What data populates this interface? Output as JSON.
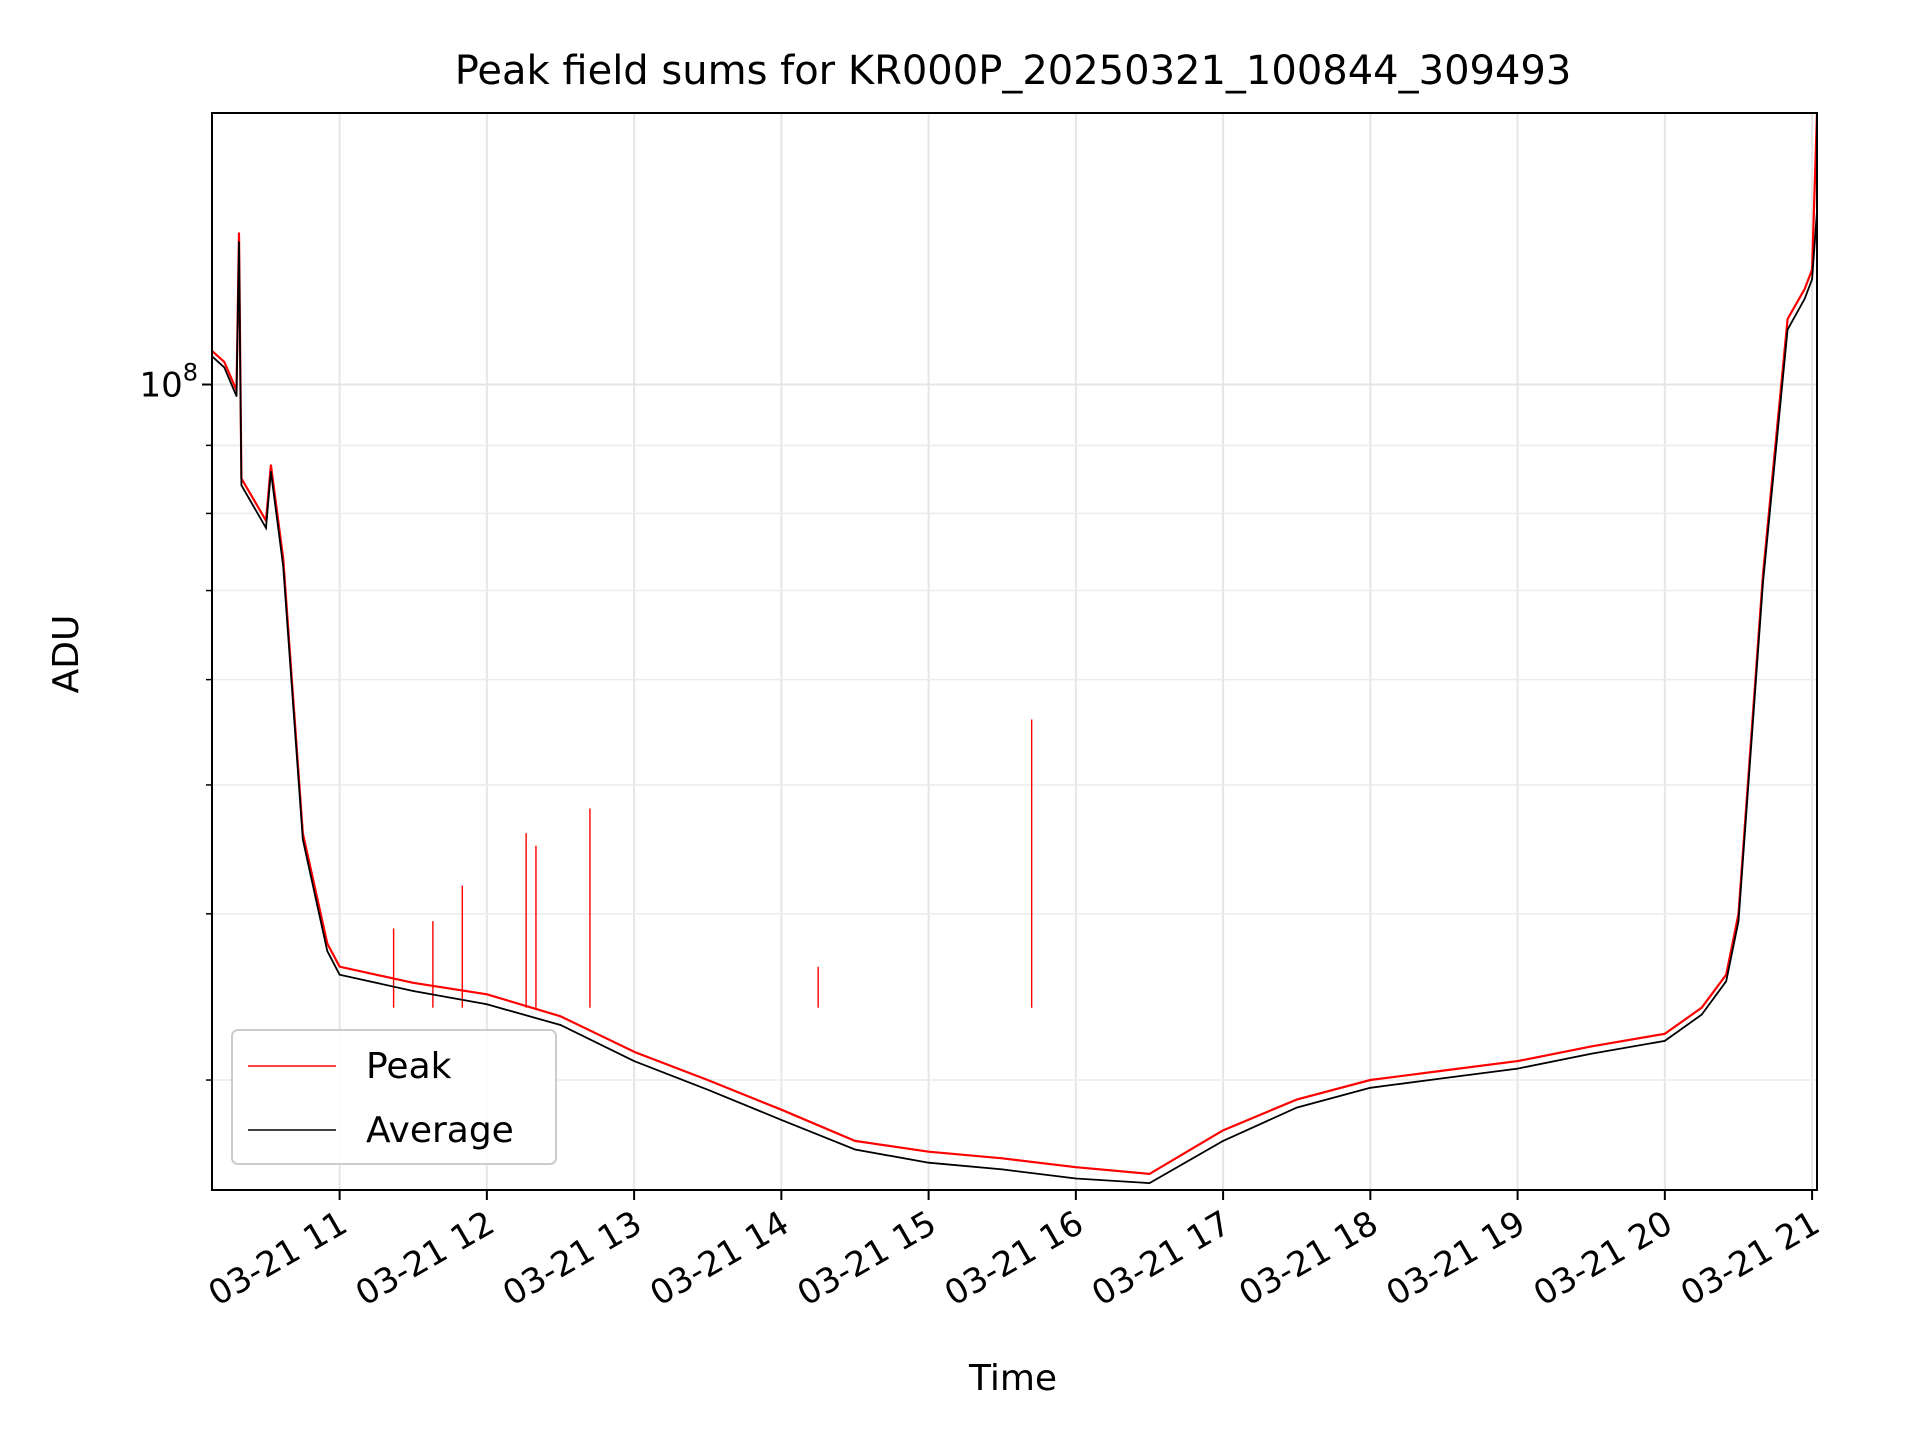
{
  "chart_data": {
    "type": "line",
    "title": "Peak field sums for KR000P_20250321_100844_309493",
    "xlabel": "Time",
    "ylabel": "ADU",
    "yscale": "log",
    "xlim": [
      "2025-03-21 10:08",
      "2025-03-21 21:02"
    ],
    "ylim": [
      24800000,
      160000000
    ],
    "grid": true,
    "legend_loc": "lower left",
    "x_ticks": [
      "03-21 11",
      "03-21 12",
      "03-21 13",
      "03-21 14",
      "03-21 15",
      "03-21 16",
      "03-21 17",
      "03-21 18",
      "03-21 19",
      "03-21 20",
      "03-21 21"
    ],
    "y_ticks": [
      "10^8"
    ],
    "x": [
      "2025-03-21 10:08",
      "2025-03-21 10:13",
      "2025-03-21 10:18",
      "2025-03-21 10:19",
      "2025-03-21 10:20",
      "2025-03-21 10:30",
      "2025-03-21 10:32",
      "2025-03-21 10:37",
      "2025-03-21 10:45",
      "2025-03-21 10:55",
      "2025-03-21 11:00",
      "2025-03-21 11:30",
      "2025-03-21 12:00",
      "2025-03-21 12:30",
      "2025-03-21 13:00",
      "2025-03-21 13:30",
      "2025-03-21 14:00",
      "2025-03-21 14:30",
      "2025-03-21 15:00",
      "2025-03-21 15:30",
      "2025-03-21 16:00",
      "2025-03-21 16:30",
      "2025-03-21 17:00",
      "2025-03-21 17:30",
      "2025-03-21 18:00",
      "2025-03-21 18:30",
      "2025-03-21 19:00",
      "2025-03-21 19:30",
      "2025-03-21 20:00",
      "2025-03-21 20:15",
      "2025-03-21 20:25",
      "2025-03-21 20:30",
      "2025-03-21 20:40",
      "2025-03-21 20:50",
      "2025-03-21 20:57",
      "2025-03-21 21:00",
      "2025-03-21 21:02"
    ],
    "series": [
      {
        "name": "Peak",
        "color": "#ff0000",
        "values": [
          106000000,
          104000000,
          99000000,
          130000000,
          85000000,
          79000000,
          87000000,
          74000000,
          46000000,
          38000000,
          36500000,
          35500000,
          34800000,
          33500000,
          31500000,
          30000000,
          28500000,
          27000000,
          26500000,
          26200000,
          25800000,
          25500000,
          27500000,
          29000000,
          30000000,
          30500000,
          31000000,
          31800000,
          32500000,
          34000000,
          36000000,
          40000000,
          72000000,
          112000000,
          118000000,
          122000000,
          160000000
        ],
        "spikes": [
          {
            "x": "2025-03-21 15:42",
            "y": 56000000
          },
          {
            "x": "2025-03-21 12:42",
            "y": 48000000
          },
          {
            "x": "2025-03-21 12:16",
            "y": 46000000
          },
          {
            "x": "2025-03-21 12:20",
            "y": 45000000
          },
          {
            "x": "2025-03-21 11:50",
            "y": 42000000
          },
          {
            "x": "2025-03-21 14:15",
            "y": 36500000
          },
          {
            "x": "2025-03-21 11:22",
            "y": 39000000
          },
          {
            "x": "2025-03-21 11:38",
            "y": 39500000
          }
        ]
      },
      {
        "name": "Average",
        "color": "#000000",
        "values": [
          105000000,
          103000000,
          98000000,
          128000000,
          84000000,
          78000000,
          86000000,
          73000000,
          45500000,
          37500000,
          36000000,
          35000000,
          34200000,
          33000000,
          31000000,
          29500000,
          28000000,
          26600000,
          26000000,
          25700000,
          25300000,
          25100000,
          27000000,
          28600000,
          29600000,
          30100000,
          30600000,
          31400000,
          32100000,
          33600000,
          35600000,
          39500000,
          71000000,
          110000000,
          116000000,
          120000000,
          135000000
        ]
      }
    ]
  }
}
